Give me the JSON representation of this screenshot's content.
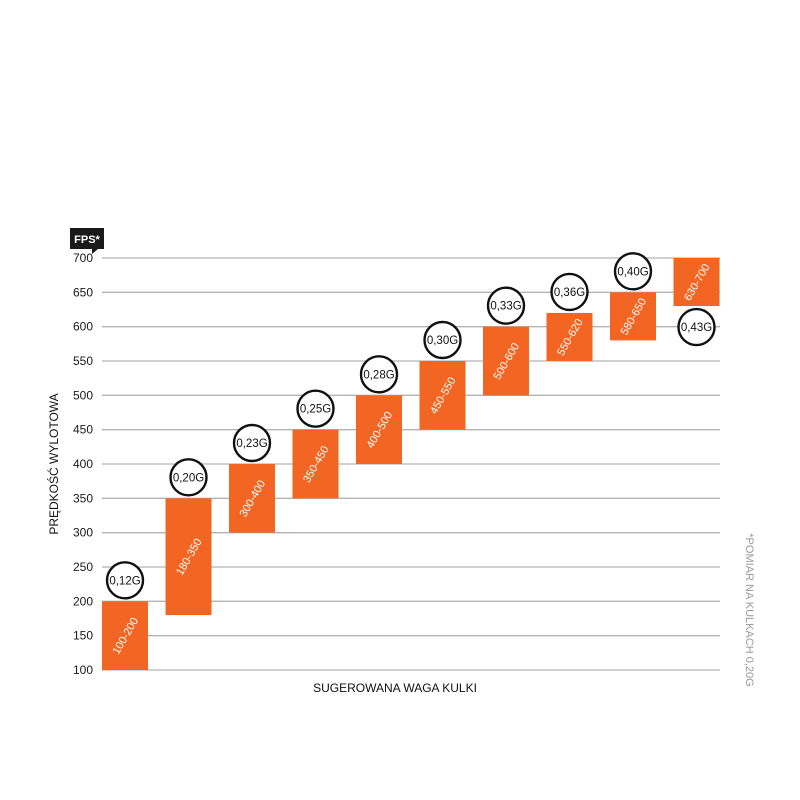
{
  "chart_data": {
    "type": "bar",
    "subtype": "floating-range",
    "unit_badge": "FPS*",
    "ylabel": "PRĘDKOŚĆ WYLOTOWA",
    "xlabel": "SUGEROWANA WAGA KULKI",
    "note": "*POMIAR NA KULKACH 0,20G",
    "ylim": [
      100,
      700
    ],
    "yticks": [
      "100",
      "150",
      "200",
      "250",
      "300",
      "350",
      "400",
      "450",
      "500",
      "550",
      "600",
      "650",
      "700"
    ],
    "grid": true,
    "colors": {
      "bar": "#f26522",
      "grid": "#b3b3b3",
      "badge": "#1a1a1a"
    },
    "bars": [
      {
        "range": "100-200",
        "low": 100,
        "high": 200,
        "weight": "0,12G",
        "weight_pos": "above"
      },
      {
        "range": "180-350",
        "low": 180,
        "high": 350,
        "weight": "0,20G",
        "weight_pos": "above"
      },
      {
        "range": "300-400",
        "low": 300,
        "high": 400,
        "weight": "0,23G",
        "weight_pos": "above"
      },
      {
        "range": "350-450",
        "low": 350,
        "high": 450,
        "weight": "0,25G",
        "weight_pos": "above"
      },
      {
        "range": "400-500",
        "low": 400,
        "high": 500,
        "weight": "0,28G",
        "weight_pos": "above"
      },
      {
        "range": "450-550",
        "low": 450,
        "high": 550,
        "weight": "0,30G",
        "weight_pos": "above"
      },
      {
        "range": "500-600",
        "low": 500,
        "high": 600,
        "weight": "0,33G",
        "weight_pos": "above"
      },
      {
        "range": "550-620",
        "low": 550,
        "high": 620,
        "weight": "0,36G",
        "weight_pos": "above"
      },
      {
        "range": "580-650",
        "low": 580,
        "high": 650,
        "weight": "0,40G",
        "weight_pos": "above"
      },
      {
        "range": "630-700",
        "low": 630,
        "high": 700,
        "weight": "0,43G",
        "weight_pos": "below"
      }
    ]
  }
}
